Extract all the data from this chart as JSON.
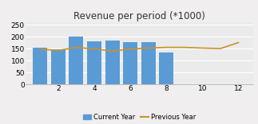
{
  "title": "Revenue per period (*1000)",
  "bar_positions": [
    1,
    2,
    3,
    4,
    5,
    6,
    7,
    8
  ],
  "bar_heights": [
    155,
    148,
    200,
    180,
    182,
    178,
    178,
    135
  ],
  "bar_color": "#5b9bd5",
  "bar_width": 0.8,
  "line_x": [
    1,
    2,
    3,
    4,
    5,
    6,
    7,
    8,
    9,
    10,
    11,
    12
  ],
  "line_y": [
    148,
    142,
    155,
    148,
    140,
    148,
    152,
    155,
    155,
    152,
    150,
    175
  ],
  "line_color": "#c8922a",
  "line_width": 1.2,
  "ylim": [
    0,
    260
  ],
  "yticks": [
    0,
    50,
    100,
    150,
    200,
    250
  ],
  "xlim": [
    0.2,
    12.8
  ],
  "xticks": [
    2,
    4,
    6,
    8,
    10,
    12
  ],
  "background_color": "#f0eeee",
  "plot_background": "#ebebeb",
  "grid_color": "#ffffff",
  "legend_labels": [
    "Current Year",
    "Previous Year"
  ],
  "title_fontsize": 8.5,
  "tick_fontsize": 6.5
}
